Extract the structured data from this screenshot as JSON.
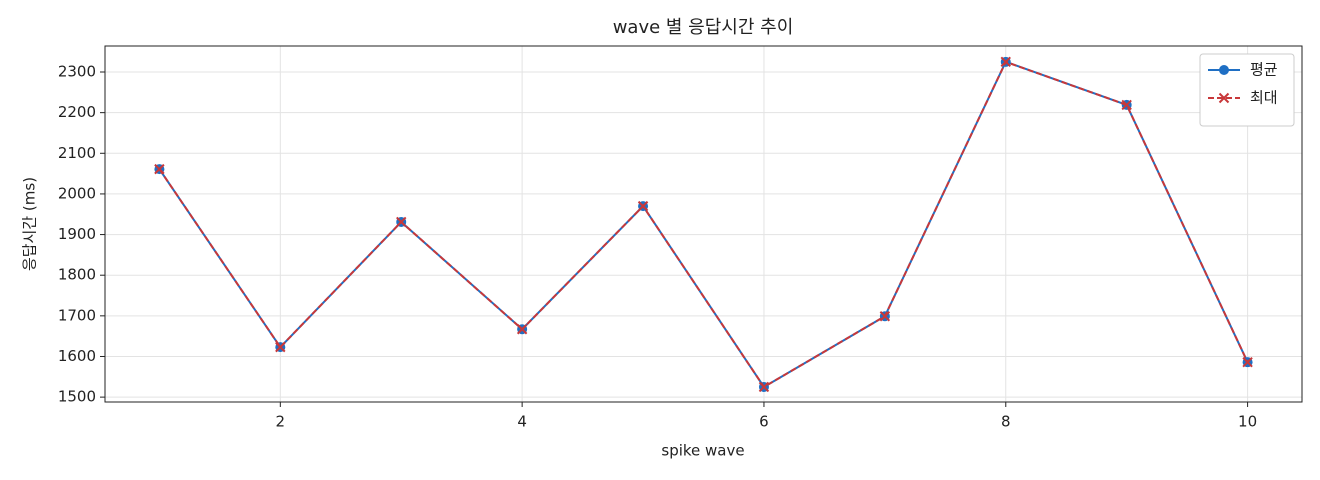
{
  "chart_data": {
    "type": "line",
    "title": "wave 별 응답시간 추이",
    "x_label": "spike wave",
    "y_label": "응답시간 (ms)",
    "x": [
      1,
      2,
      3,
      4,
      5,
      6,
      7,
      8,
      9,
      10
    ],
    "series": [
      {
        "name": "평균",
        "color": "#1f6fc4",
        "marker": "circle",
        "dash": false,
        "values": [
          2061,
          1623,
          1931,
          1667,
          1970,
          1525,
          1699,
          2325,
          2219,
          1586
        ]
      },
      {
        "name": "최대",
        "color": "#c8383a",
        "marker": "x",
        "dash": true,
        "values": [
          2061,
          1623,
          1931,
          1667,
          1970,
          1525,
          1699,
          2325,
          2219,
          1586
        ]
      }
    ],
    "xlim": [
      0.55,
      10.45
    ],
    "xticks": [
      2,
      4,
      6,
      8,
      10
    ],
    "ylim": [
      1488,
      2364
    ],
    "yticks": [
      1500,
      1600,
      1700,
      1800,
      1900,
      2000,
      2100,
      2200,
      2300
    ],
    "grid": true,
    "legend": "upper right"
  }
}
